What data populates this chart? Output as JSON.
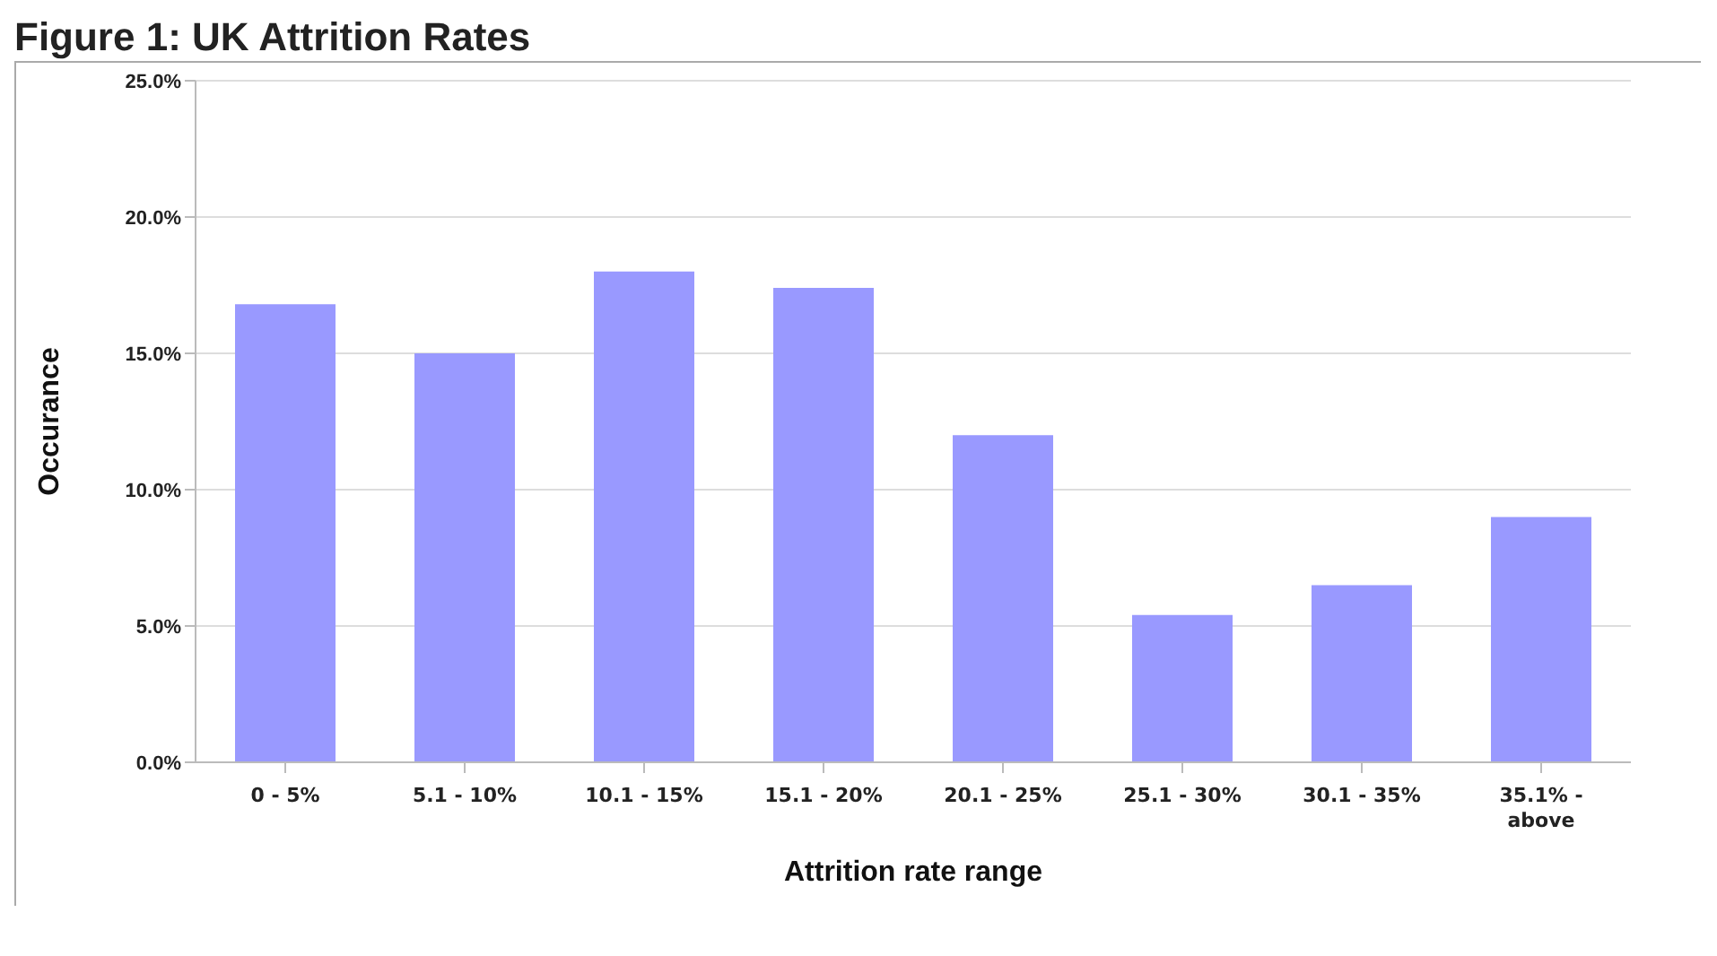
{
  "chart_data": {
    "type": "bar",
    "title": "Figure 1: UK Attrition Rates",
    "xlabel": "Attrition rate range",
    "ylabel": "Occurance",
    "categories": [
      "0 - 5%",
      "5.1 - 10%",
      "10.1 - 15%",
      "15.1 - 20%",
      "20.1 - 25%",
      "25.1 - 30%",
      "30.1 - 35%",
      "35.1% - above"
    ],
    "values": [
      16.8,
      15.0,
      18.0,
      17.4,
      12.0,
      5.4,
      6.5,
      9.0
    ],
    "color": "#9999ff",
    "ylim": [
      0,
      25
    ],
    "yticks": [
      {
        "value": 0,
        "label": "0.0%"
      },
      {
        "value": 5,
        "label": "5.0%"
      },
      {
        "value": 10,
        "label": "10.0%"
      },
      {
        "value": 15,
        "label": "15.0%"
      },
      {
        "value": 20,
        "label": "20.0%"
      },
      {
        "value": 25,
        "label": "25.0%"
      }
    ],
    "grid": "y",
    "legend": false
  }
}
